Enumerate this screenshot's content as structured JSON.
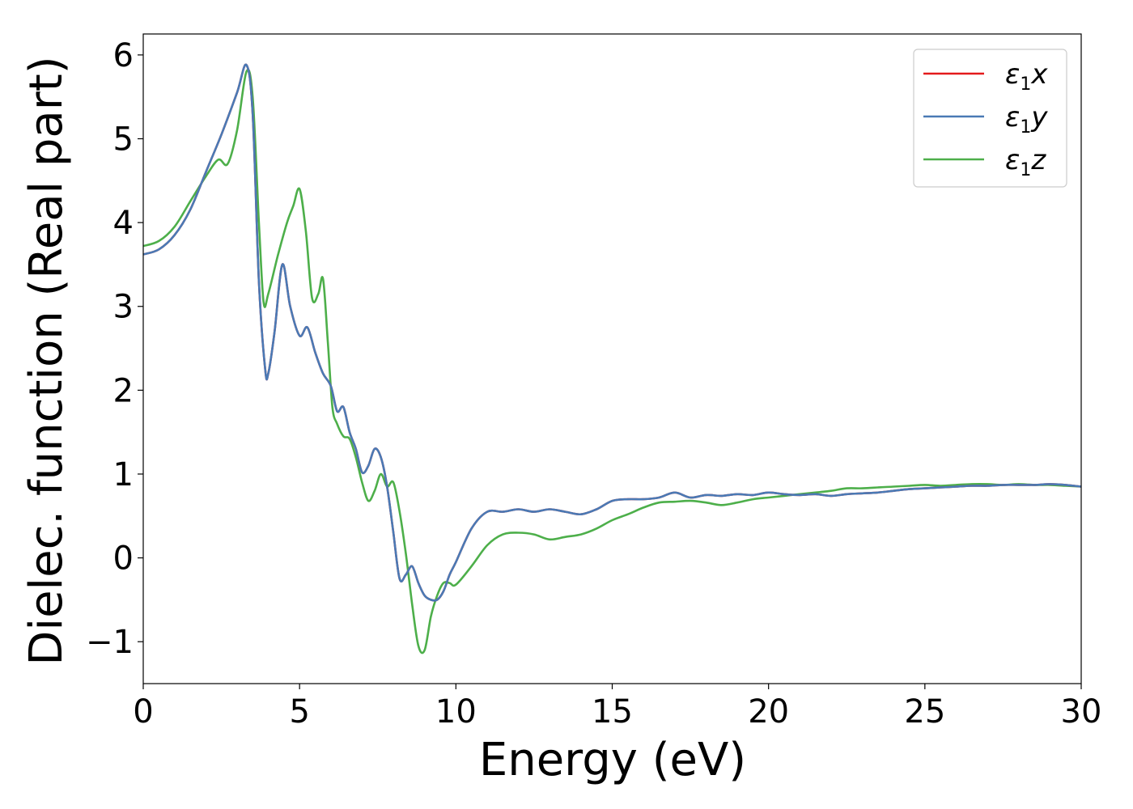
{
  "chart_data": {
    "type": "line",
    "xlabel": "Energy (eV)",
    "ylabel": "Dielec. function (Real part)",
    "xlim": [
      0,
      30
    ],
    "ylim": [
      -1.5,
      6.25
    ],
    "xticks": [
      0,
      5,
      10,
      15,
      20,
      25,
      30
    ],
    "yticks": [
      -1,
      0,
      1,
      2,
      3,
      4,
      5,
      6
    ],
    "grid": false,
    "legend_position": "top-right",
    "series": [
      {
        "name": "ε1x",
        "legend": {
          "base": "ε",
          "sub": "1",
          "var": "x"
        },
        "color": "#e41a1c",
        "x": [
          0,
          0.5,
          1.0,
          1.5,
          2.0,
          2.5,
          3.0,
          3.3,
          3.5,
          3.7,
          3.9,
          4.0,
          4.2,
          4.45,
          4.7,
          5.0,
          5.25,
          5.5,
          5.75,
          6.0,
          6.2,
          6.4,
          6.6,
          6.8,
          7.0,
          7.2,
          7.4,
          7.6,
          7.8,
          8.0,
          8.2,
          8.4,
          8.6,
          8.8,
          9.0,
          9.2,
          9.4,
          9.6,
          9.8,
          10.0,
          10.5,
          11.0,
          11.5,
          12.0,
          12.5,
          13.0,
          13.5,
          14.0,
          14.5,
          15.0,
          15.5,
          16.0,
          16.5,
          17.0,
          17.5,
          18.0,
          18.5,
          19.0,
          19.5,
          20.0,
          20.5,
          21.0,
          21.5,
          22.0,
          22.5,
          23.0,
          23.5,
          24.0,
          24.5,
          25.0,
          25.5,
          26.0,
          26.5,
          27.0,
          27.5,
          28.0,
          28.5,
          29.0,
          29.5,
          30.0
        ],
        "y": [
          3.62,
          3.68,
          3.85,
          4.15,
          4.6,
          5.05,
          5.55,
          5.88,
          5.3,
          3.3,
          2.25,
          2.2,
          2.7,
          3.5,
          3.0,
          2.65,
          2.75,
          2.45,
          2.2,
          2.05,
          1.75,
          1.8,
          1.5,
          1.3,
          1.02,
          1.1,
          1.3,
          1.2,
          0.85,
          0.3,
          -0.25,
          -0.2,
          -0.1,
          -0.3,
          -0.45,
          -0.5,
          -0.5,
          -0.4,
          -0.2,
          -0.05,
          0.35,
          0.55,
          0.55,
          0.58,
          0.55,
          0.58,
          0.55,
          0.52,
          0.58,
          0.68,
          0.7,
          0.7,
          0.72,
          0.78,
          0.72,
          0.75,
          0.74,
          0.76,
          0.75,
          0.78,
          0.76,
          0.75,
          0.76,
          0.74,
          0.76,
          0.77,
          0.78,
          0.8,
          0.82,
          0.83,
          0.84,
          0.85,
          0.86,
          0.86,
          0.87,
          0.87,
          0.87,
          0.88,
          0.87,
          0.85
        ]
      },
      {
        "name": "ε1y",
        "legend": {
          "base": "ε",
          "sub": "1",
          "var": "y"
        },
        "color": "#4a7ab5",
        "x": [
          0,
          0.5,
          1.0,
          1.5,
          2.0,
          2.5,
          3.0,
          3.3,
          3.5,
          3.7,
          3.9,
          4.0,
          4.2,
          4.45,
          4.7,
          5.0,
          5.25,
          5.5,
          5.75,
          6.0,
          6.2,
          6.4,
          6.6,
          6.8,
          7.0,
          7.2,
          7.4,
          7.6,
          7.8,
          8.0,
          8.2,
          8.4,
          8.6,
          8.8,
          9.0,
          9.2,
          9.4,
          9.6,
          9.8,
          10.0,
          10.5,
          11.0,
          11.5,
          12.0,
          12.5,
          13.0,
          13.5,
          14.0,
          14.5,
          15.0,
          15.5,
          16.0,
          16.5,
          17.0,
          17.5,
          18.0,
          18.5,
          19.0,
          19.5,
          20.0,
          20.5,
          21.0,
          21.5,
          22.0,
          22.5,
          23.0,
          23.5,
          24.0,
          24.5,
          25.0,
          25.5,
          26.0,
          26.5,
          27.0,
          27.5,
          28.0,
          28.5,
          29.0,
          29.5,
          30.0
        ],
        "y": [
          3.62,
          3.68,
          3.85,
          4.15,
          4.6,
          5.05,
          5.55,
          5.88,
          5.3,
          3.3,
          2.25,
          2.2,
          2.7,
          3.5,
          3.0,
          2.65,
          2.75,
          2.45,
          2.2,
          2.05,
          1.75,
          1.8,
          1.5,
          1.3,
          1.02,
          1.1,
          1.3,
          1.2,
          0.85,
          0.3,
          -0.25,
          -0.2,
          -0.1,
          -0.3,
          -0.45,
          -0.5,
          -0.5,
          -0.4,
          -0.2,
          -0.05,
          0.35,
          0.55,
          0.55,
          0.58,
          0.55,
          0.58,
          0.55,
          0.52,
          0.58,
          0.68,
          0.7,
          0.7,
          0.72,
          0.78,
          0.72,
          0.75,
          0.74,
          0.76,
          0.75,
          0.78,
          0.76,
          0.75,
          0.76,
          0.74,
          0.76,
          0.77,
          0.78,
          0.8,
          0.82,
          0.83,
          0.84,
          0.85,
          0.86,
          0.86,
          0.87,
          0.87,
          0.87,
          0.88,
          0.87,
          0.85
        ]
      },
      {
        "name": "ε1z",
        "legend": {
          "base": "ε",
          "sub": "1",
          "var": "z"
        },
        "color": "#4daf4a",
        "x": [
          0,
          0.5,
          1.0,
          1.5,
          2.0,
          2.4,
          2.7,
          3.0,
          3.3,
          3.5,
          3.7,
          3.85,
          4.0,
          4.3,
          4.6,
          4.8,
          5.0,
          5.2,
          5.4,
          5.6,
          5.75,
          5.9,
          6.05,
          6.2,
          6.4,
          6.6,
          6.8,
          7.0,
          7.2,
          7.4,
          7.6,
          7.8,
          8.0,
          8.2,
          8.4,
          8.6,
          8.8,
          9.0,
          9.2,
          9.4,
          9.6,
          9.8,
          10.0,
          10.5,
          11.0,
          11.5,
          12.0,
          12.5,
          13.0,
          13.5,
          14.0,
          14.5,
          15.0,
          15.5,
          16.0,
          16.5,
          17.0,
          17.5,
          18.0,
          18.5,
          19.0,
          19.5,
          20.0,
          20.5,
          21.0,
          21.5,
          22.0,
          22.5,
          23.0,
          23.5,
          24.0,
          24.5,
          25.0,
          25.5,
          26.0,
          26.5,
          27.0,
          27.5,
          28.0,
          28.5,
          29.0,
          29.5,
          30.0
        ],
        "y": [
          3.72,
          3.78,
          3.95,
          4.25,
          4.55,
          4.75,
          4.7,
          5.1,
          5.8,
          5.5,
          4.0,
          3.05,
          3.15,
          3.6,
          4.0,
          4.2,
          4.4,
          3.9,
          3.1,
          3.15,
          3.33,
          2.6,
          1.8,
          1.6,
          1.45,
          1.42,
          1.2,
          0.9,
          0.68,
          0.8,
          1.0,
          0.85,
          0.9,
          0.55,
          0.05,
          -0.55,
          -1.05,
          -1.1,
          -0.7,
          -0.45,
          -0.3,
          -0.3,
          -0.32,
          -0.1,
          0.15,
          0.28,
          0.3,
          0.28,
          0.22,
          0.25,
          0.28,
          0.35,
          0.45,
          0.52,
          0.6,
          0.66,
          0.67,
          0.68,
          0.66,
          0.63,
          0.66,
          0.7,
          0.72,
          0.74,
          0.76,
          0.78,
          0.8,
          0.83,
          0.83,
          0.84,
          0.85,
          0.86,
          0.87,
          0.86,
          0.87,
          0.88,
          0.88,
          0.87,
          0.88,
          0.87,
          0.87,
          0.86,
          0.85
        ]
      }
    ]
  }
}
